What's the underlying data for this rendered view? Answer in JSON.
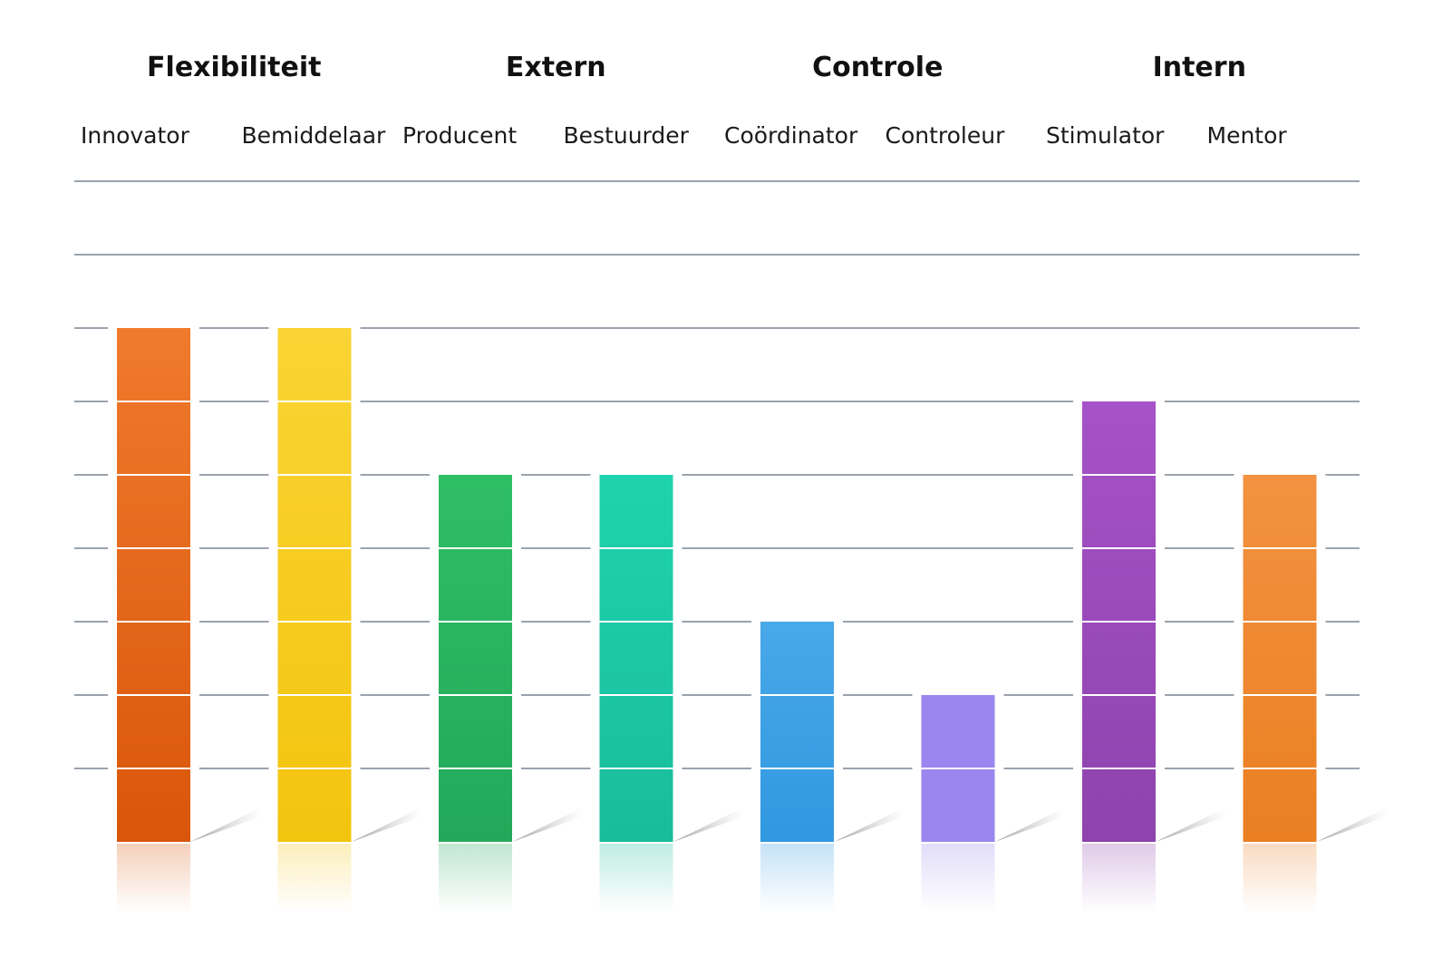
{
  "chart_data": {
    "type": "bar",
    "groups": [
      {
        "label": "Flexibiliteit",
        "categories": [
          "Innovator",
          "Bemiddelaar"
        ]
      },
      {
        "label": "Extern",
        "categories": [
          "Producent",
          "Bestuurder"
        ]
      },
      {
        "label": "Controle",
        "categories": [
          "Coördinator",
          "Controleur"
        ]
      },
      {
        "label": "Intern",
        "categories": [
          "Stimulator",
          "Mentor"
        ]
      }
    ],
    "categories": [
      "Innovator",
      "Bemiddelaar",
      "Producent",
      "Bestuurder",
      "Coördinator",
      "Controleur",
      "Stimulator",
      "Mentor"
    ],
    "values": [
      7,
      7,
      5,
      5,
      3,
      2,
      6,
      5
    ],
    "ylim": [
      0,
      9
    ],
    "grid": true,
    "axis_tick_labels_shown": false,
    "colors": [
      {
        "top": "#F07A2C",
        "bottom": "#D9560A"
      },
      {
        "top": "#FAD434",
        "bottom": "#F3C40E"
      },
      {
        "top": "#2EBE64",
        "bottom": "#23A85A"
      },
      {
        "top": "#1FD3AE",
        "bottom": "#19BC9C"
      },
      {
        "top": "#49A8E8",
        "bottom": "#3098E0"
      },
      {
        "top": "#9A86EE",
        "bottom": "#9A86EE"
      },
      {
        "top": "#A652C8",
        "bottom": "#8E43AD"
      },
      {
        "top": "#F39240",
        "bottom": "#EA7F22"
      }
    ],
    "gridline_color": "#9AA3AE"
  }
}
